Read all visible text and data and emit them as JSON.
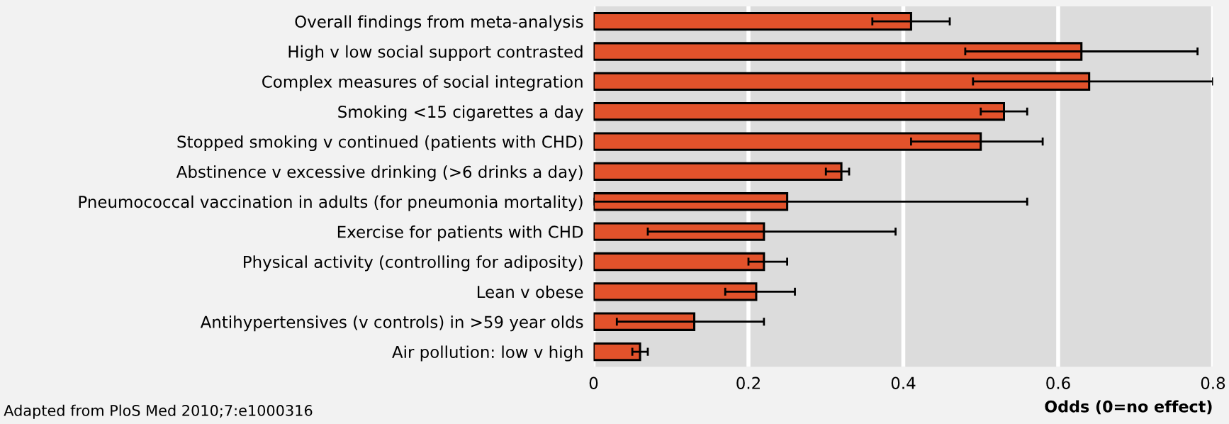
{
  "chart_data": {
    "type": "bar",
    "orientation": "horizontal",
    "xlabel": "Odds (0=no effect)",
    "categories": [
      "Overall findings from meta-analysis",
      "High v low social support contrasted",
      "Complex measures of social integration",
      "Smoking <15 cigarettes a day",
      "Stopped smoking v continued (patients with CHD)",
      "Abstinence v excessive drinking (>6 drinks a day)",
      "Pneumococcal vaccination in adults (for pneumonia mortality)",
      "Exercise for patients with CHD",
      "Physical activity (controlling for adiposity)",
      "Lean v obese",
      "Antihypertensives (v controls) in >59 year olds",
      "Air pollution: low v high"
    ],
    "values": [
      0.41,
      0.63,
      0.64,
      0.53,
      0.5,
      0.32,
      0.25,
      0.22,
      0.22,
      0.21,
      0.13,
      0.06
    ],
    "errors": [
      [
        0.36,
        0.46
      ],
      [
        0.48,
        0.78
      ],
      [
        0.49,
        0.8
      ],
      [
        0.5,
        0.56
      ],
      [
        0.41,
        0.58
      ],
      [
        0.3,
        0.33
      ],
      [
        0.0,
        0.56
      ],
      [
        0.07,
        0.39
      ],
      [
        0.2,
        0.25
      ],
      [
        0.17,
        0.26
      ],
      [
        0.03,
        0.22
      ],
      [
        0.05,
        0.07
      ]
    ],
    "color": "#e2522b",
    "xlim": [
      0,
      0.8
    ],
    "xticks": [
      0,
      0.2,
      0.4,
      0.6,
      0.8
    ],
    "grid": "x",
    "annotations": [
      "Adapted from PloS Med 2010;7:e1000316"
    ]
  }
}
